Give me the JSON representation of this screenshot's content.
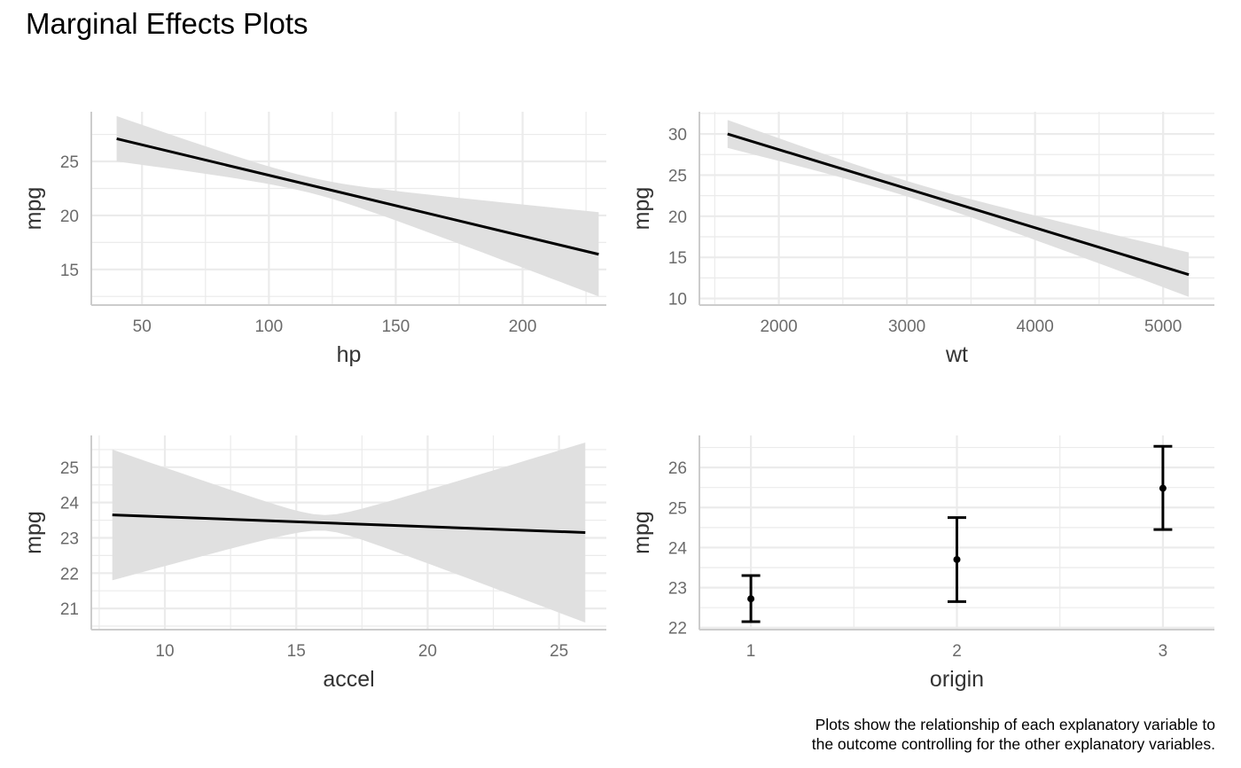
{
  "title": "Marginal Effects Plots",
  "caption": [
    "Plots show the relationship of each explanatory variable to",
    "the outcome controlling for the other explanatory variables."
  ],
  "colors": {
    "line": "#000000",
    "band": "#e0e0e0",
    "grid": "#ebebeb",
    "axis": "#cccccc"
  },
  "chart_data": [
    {
      "type": "line",
      "xlabel": "hp",
      "ylabel": "mpg",
      "xlim": [
        30,
        233
      ],
      "ylim": [
        11.7,
        29.6
      ],
      "xticks": [
        50,
        100,
        150,
        200
      ],
      "yticks": [
        15,
        20,
        25
      ],
      "series": [
        {
          "x": [
            40,
            230
          ],
          "y": [
            27.1,
            16.4
          ],
          "lower": [
            25.0,
            12.5
          ],
          "upper": [
            29.2,
            20.3
          ],
          "pivot_x": 115
        }
      ]
    },
    {
      "type": "line",
      "xlabel": "wt",
      "ylabel": "mpg",
      "xlim": [
        1380,
        5400
      ],
      "ylim": [
        9.2,
        32.7
      ],
      "xticks": [
        2000,
        3000,
        4000,
        5000
      ],
      "yticks": [
        10,
        15,
        20,
        25,
        30
      ],
      "series": [
        {
          "x": [
            1600,
            5200
          ],
          "y": [
            30.0,
            12.9
          ],
          "lower": [
            28.3,
            10.2
          ],
          "upper": [
            31.7,
            15.6
          ],
          "pivot_x": 3000
        }
      ]
    },
    {
      "type": "line",
      "xlabel": "accel",
      "ylabel": "mpg",
      "xlim": [
        7.2,
        26.8
      ],
      "ylim": [
        20.4,
        25.9
      ],
      "xticks": [
        10,
        15,
        20,
        25
      ],
      "yticks": [
        21,
        22,
        23,
        24,
        25
      ],
      "series": [
        {
          "x": [
            8,
            26
          ],
          "y": [
            23.65,
            23.15
          ],
          "lower": [
            21.8,
            20.6
          ],
          "upper": [
            25.5,
            25.7
          ],
          "pivot_x": 16
        }
      ]
    },
    {
      "type": "scatter",
      "xlabel": "origin",
      "ylabel": "mpg",
      "xlim": [
        0.75,
        3.25
      ],
      "ylim": [
        21.95,
        26.8
      ],
      "categories": [
        "1",
        "2",
        "3"
      ],
      "yticks": [
        22,
        23,
        24,
        25,
        26
      ],
      "values": [
        22.72,
        23.7,
        25.48
      ],
      "lower": [
        22.15,
        22.65,
        24.45
      ],
      "upper": [
        23.3,
        24.75,
        26.53
      ]
    }
  ]
}
